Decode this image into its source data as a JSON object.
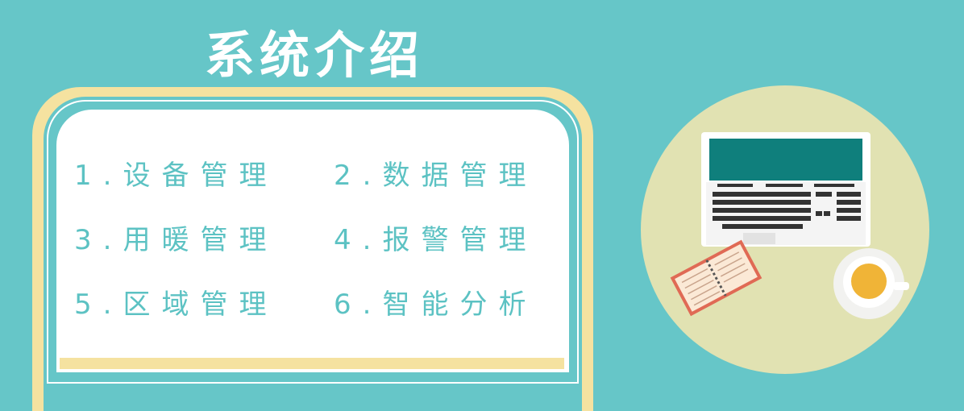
{
  "title": "系统介绍",
  "menu": [
    {
      "label": "1.设备管理"
    },
    {
      "label": "2.数据管理"
    },
    {
      "label": "3.用暖管理"
    },
    {
      "label": "4.报警管理"
    },
    {
      "label": "5.区域管理"
    },
    {
      "label": "6.智能分析"
    }
  ],
  "colors": {
    "background": "#66c6c8",
    "frame": "#f5e2a0",
    "text": "#5cc2c3",
    "circle": "#e1e2b2"
  },
  "illustration": {
    "laptop": "laptop-icon",
    "notebook": "notebook-icon",
    "coffee": "coffee-cup-icon"
  }
}
